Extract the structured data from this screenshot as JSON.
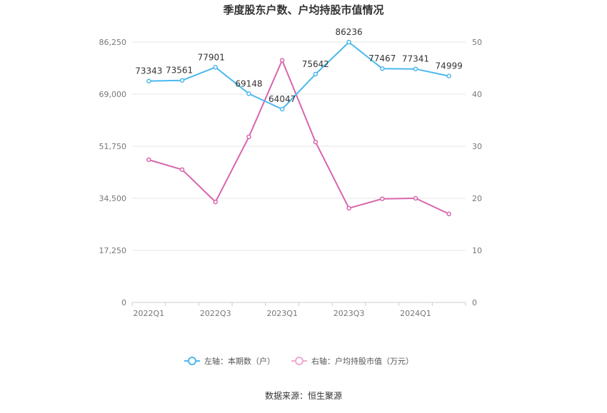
{
  "chart_data": {
    "type": "line",
    "title": "季度股东户数、户均持股市值情况",
    "categories": [
      "2022Q1",
      "2022Q2",
      "2022Q3",
      "2022Q4",
      "2023Q1",
      "2023Q2",
      "2023Q3",
      "2023Q4",
      "2024Q1",
      "2024Q2"
    ],
    "x_tick_labels": [
      "2022Q1",
      "",
      "2022Q3",
      "",
      "2023Q1",
      "",
      "2023Q3",
      "",
      "2024Q1",
      ""
    ],
    "left_axis": {
      "ylim": [
        0,
        86250
      ],
      "ticks": [
        "0",
        "17,250",
        "34,500",
        "51,750",
        "69,000",
        "86,250"
      ],
      "tick_values": [
        0,
        17250,
        34500,
        51750,
        69000,
        86250
      ]
    },
    "right_axis": {
      "ylim": [
        0,
        50
      ],
      "ticks": [
        "0",
        "10",
        "20",
        "30",
        "40",
        "50"
      ],
      "tick_values": [
        0,
        10,
        20,
        30,
        40,
        50
      ]
    },
    "series": [
      {
        "name": "左轴：本期数（户）",
        "axis": "left",
        "color": "#4cb8ee",
        "values": [
          73343,
          73561,
          77901,
          69148,
          64047,
          75642,
          86236,
          77467,
          77341,
          74999
        ],
        "labels": [
          "73343",
          "73561",
          "77901",
          "69148",
          "64047",
          "75642",
          "86236",
          "77467",
          "77341",
          "74999"
        ]
      },
      {
        "name": "右轴：户均持股市值（万元）",
        "axis": "right",
        "color": "#d865ad",
        "values": [
          27.4,
          25.5,
          19.3,
          31.8,
          46.5,
          30.8,
          18.1,
          19.9,
          20.0,
          17.0
        ]
      }
    ],
    "grid": true,
    "legend_position": "bottom",
    "source": "数据来源：恒生聚源"
  }
}
